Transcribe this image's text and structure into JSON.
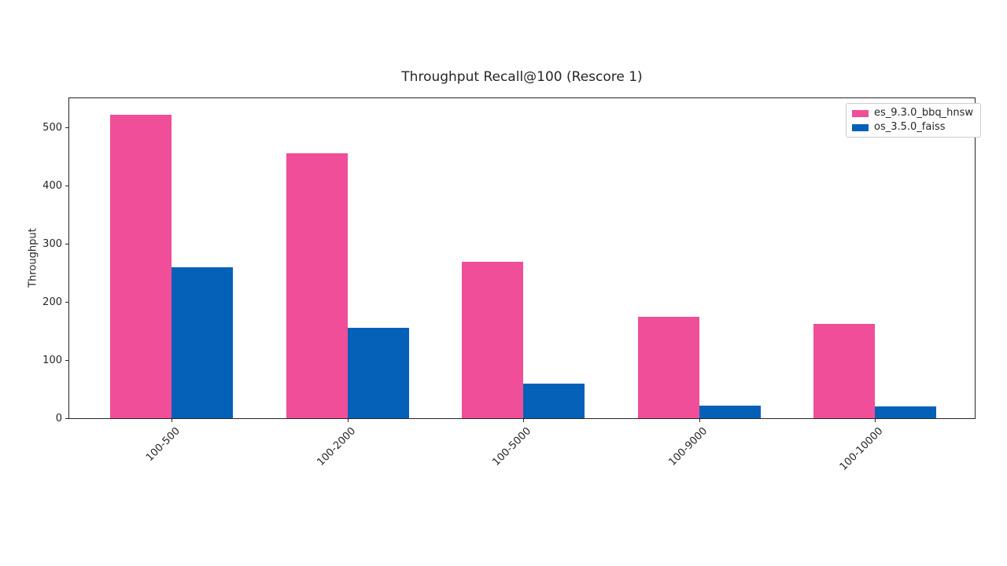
{
  "figure": {
    "background": "#ffffff",
    "spine_color": "#262626",
    "text_color": "#262626",
    "legend_border_color": "#cccccc"
  },
  "chart_data": {
    "type": "bar",
    "title": "Throughput Recall@100 (Rescore 1)",
    "xlabel": "",
    "ylabel": "Throughput",
    "categories": [
      "100-500",
      "100-2000",
      "100-5000",
      "100-9000",
      "100-10000"
    ],
    "series": [
      {
        "name": "es_9.3.0_bbq_hnsw",
        "color": "#f04e98",
        "values": [
          522,
          456,
          269,
          175,
          163
        ]
      },
      {
        "name": "os_3.5.0_faiss",
        "color": "#0561b8",
        "values": [
          260,
          155,
          60,
          22,
          20
        ]
      }
    ],
    "yticks": [
      0,
      100,
      200,
      300,
      400,
      500
    ],
    "ylim": [
      0,
      552
    ],
    "bar_width_fraction": 0.35,
    "grid": false,
    "legend_position": "upper right",
    "x_tick_rotation": 45
  }
}
